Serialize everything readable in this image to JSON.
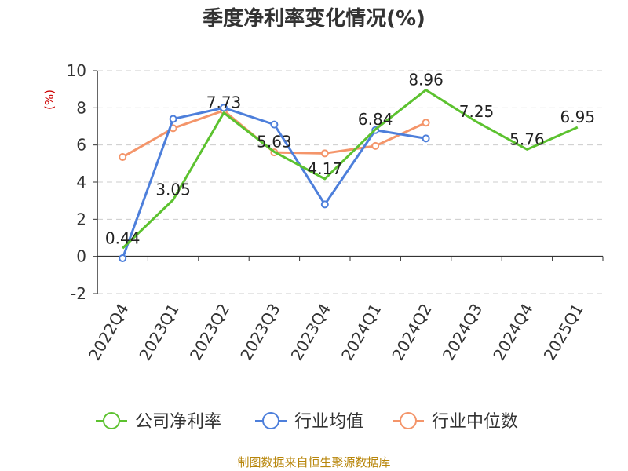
{
  "chart_data": {
    "type": "line",
    "title": "季度净利率变化情况(%)",
    "ylabel": "(%)",
    "xlabel": "",
    "ylim": [
      -2,
      10
    ],
    "yticks": [
      -2,
      0,
      2,
      4,
      6,
      8,
      10
    ],
    "grid": true,
    "legend_position": "bottom",
    "categories": [
      "2022Q4",
      "2023Q1",
      "2023Q2",
      "2023Q3",
      "2023Q4",
      "2024Q1",
      "2024Q2",
      "2024Q3",
      "2024Q4",
      "2025Q1"
    ],
    "series": [
      {
        "name": "公司净利率",
        "color": "#5cc22f",
        "values": [
          0.44,
          3.05,
          7.73,
          5.63,
          4.17,
          6.84,
          8.96,
          7.25,
          5.76,
          6.95
        ],
        "labels": [
          "0.44",
          "3.05",
          "7.73",
          "5.63",
          "4.17",
          "6.84",
          "8.96",
          "7.25",
          "5.76",
          "6.95"
        ]
      },
      {
        "name": "行业均值",
        "color": "#4d7fdb",
        "values": [
          -0.1,
          7.4,
          8.0,
          7.1,
          2.8,
          6.8,
          6.35,
          null,
          null,
          null
        ]
      },
      {
        "name": "行业中位数",
        "color": "#f4956a",
        "values": [
          5.35,
          6.9,
          7.85,
          5.6,
          5.55,
          5.95,
          7.2,
          null,
          null,
          null
        ]
      }
    ],
    "source": "制图数据来自恒生聚源数据库"
  }
}
